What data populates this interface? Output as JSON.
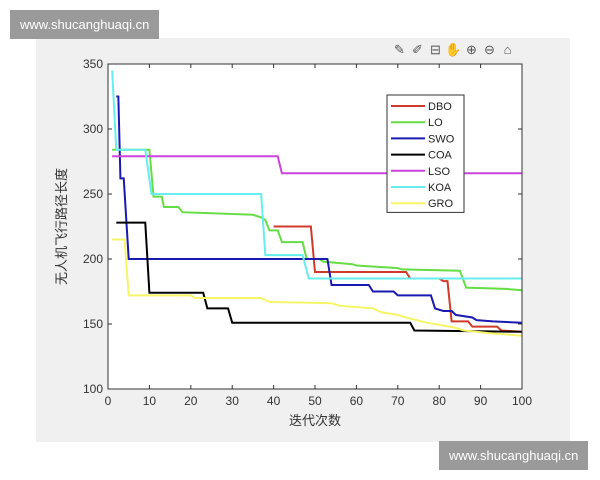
{
  "watermark_top": "www.shucanghuaqi.cn",
  "watermark_bottom": "www.shucanghuaqi.cn",
  "toolbar": [
    {
      "icon": "brush-icon",
      "glyph": "✎"
    },
    {
      "icon": "pen-icon",
      "glyph": "✐"
    },
    {
      "icon": "data-tip-icon",
      "glyph": "⊟"
    },
    {
      "icon": "pan-hand-icon",
      "glyph": "✋"
    },
    {
      "icon": "zoom-in-icon",
      "glyph": "⊕"
    },
    {
      "icon": "zoom-out-icon",
      "glyph": "⊖"
    },
    {
      "icon": "home-icon",
      "glyph": "⌂"
    }
  ],
  "chart_data": {
    "type": "line",
    "title": "",
    "xlabel": "迭代次数",
    "ylabel": "无人机飞行路径长度",
    "xlim": [
      0,
      100
    ],
    "ylim": [
      100,
      350
    ],
    "xticks": [
      0,
      10,
      20,
      30,
      40,
      50,
      60,
      70,
      80,
      90,
      100
    ],
    "yticks": [
      100,
      150,
      200,
      250,
      300,
      350
    ],
    "grid": false,
    "legend_position": "top-right",
    "series": [
      {
        "name": "DBO",
        "color": "#d03a2a",
        "points": [
          [
            40,
            225
          ],
          [
            49,
            225
          ],
          [
            50,
            190
          ],
          [
            72,
            190
          ],
          [
            73,
            185
          ],
          [
            80,
            185
          ],
          [
            81,
            183
          ],
          [
            82,
            183
          ],
          [
            83,
            152
          ],
          [
            87,
            152
          ],
          [
            88,
            148
          ],
          [
            94,
            148
          ],
          [
            95,
            145
          ],
          [
            100,
            144
          ]
        ]
      },
      {
        "name": "LO",
        "color": "#66dd44",
        "points": [
          [
            1,
            284
          ],
          [
            10,
            284
          ],
          [
            11,
            248
          ],
          [
            13,
            248
          ],
          [
            13.5,
            240
          ],
          [
            17,
            240
          ],
          [
            18,
            236
          ],
          [
            35,
            234
          ],
          [
            37,
            232
          ],
          [
            38,
            230
          ],
          [
            39,
            222
          ],
          [
            41,
            222
          ],
          [
            42,
            213
          ],
          [
            47,
            213
          ],
          [
            48,
            200
          ],
          [
            51,
            200
          ],
          [
            52,
            198
          ],
          [
            59,
            196
          ],
          [
            60,
            195
          ],
          [
            70,
            193
          ],
          [
            71,
            192
          ],
          [
            85,
            191
          ],
          [
            86.5,
            178
          ],
          [
            96,
            177
          ],
          [
            100,
            176
          ]
        ]
      },
      {
        "name": "SWO",
        "color": "#1a1ab0",
        "points": [
          [
            2,
            325
          ],
          [
            2.5,
            325
          ],
          [
            3,
            262
          ],
          [
            3.8,
            262
          ],
          [
            5,
            200
          ],
          [
            53,
            200
          ],
          [
            54,
            180
          ],
          [
            63,
            180
          ],
          [
            64,
            175
          ],
          [
            69,
            175
          ],
          [
            70,
            172
          ],
          [
            78,
            172
          ],
          [
            79,
            162
          ],
          [
            81,
            160
          ],
          [
            83,
            160
          ],
          [
            84,
            157
          ],
          [
            88,
            155
          ],
          [
            89,
            153
          ],
          [
            93,
            152
          ],
          [
            100,
            151
          ]
        ]
      },
      {
        "name": "COA",
        "color": "#000000",
        "points": [
          [
            2,
            228
          ],
          [
            9,
            228
          ],
          [
            10,
            174
          ],
          [
            23,
            174
          ],
          [
            24,
            162
          ],
          [
            29,
            162
          ],
          [
            30,
            151
          ],
          [
            73,
            151
          ],
          [
            74,
            145
          ],
          [
            100,
            144
          ]
        ]
      },
      {
        "name": "LSO",
        "color": "#cc44dd",
        "points": [
          [
            1,
            279
          ],
          [
            41,
            279
          ],
          [
            42,
            266
          ],
          [
            100,
            266
          ]
        ]
      },
      {
        "name": "KOA",
        "color": "#66eeee",
        "points": [
          [
            1,
            345
          ],
          [
            2,
            284
          ],
          [
            9,
            284
          ],
          [
            10.5,
            250
          ],
          [
            37,
            250
          ],
          [
            38,
            203
          ],
          [
            47,
            203
          ],
          [
            48.5,
            185
          ],
          [
            100,
            185
          ]
        ]
      },
      {
        "name": "GRO",
        "color": "#f5f56a",
        "points": [
          [
            1,
            215
          ],
          [
            4,
            215
          ],
          [
            5,
            172
          ],
          [
            20,
            172
          ],
          [
            21,
            170
          ],
          [
            37,
            170
          ],
          [
            39,
            167
          ],
          [
            54,
            166
          ],
          [
            56,
            164
          ],
          [
            64,
            162
          ],
          [
            66,
            159
          ],
          [
            70,
            157
          ],
          [
            72,
            155
          ],
          [
            77,
            151
          ],
          [
            79,
            150
          ],
          [
            84,
            147
          ],
          [
            86,
            145
          ],
          [
            92,
            143
          ],
          [
            100,
            141
          ]
        ]
      }
    ]
  }
}
